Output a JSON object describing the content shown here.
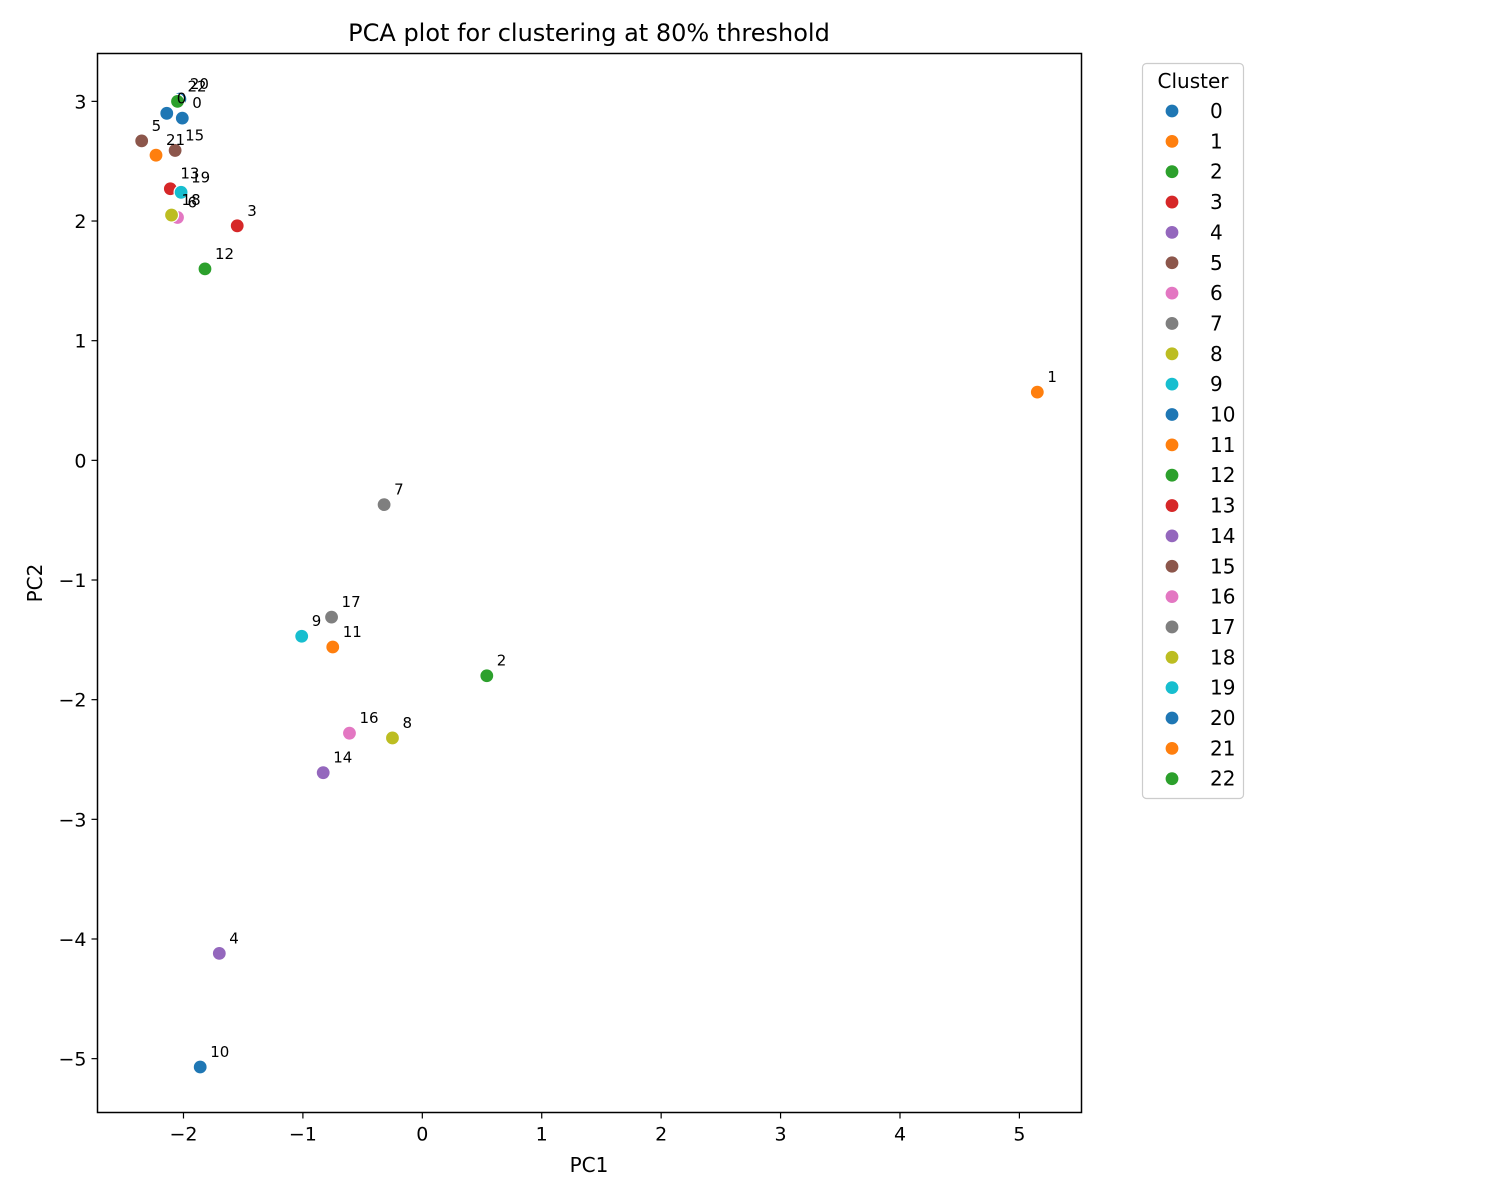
{
  "chart_data": {
    "type": "scatter",
    "title": "PCA plot for clustering at 80% threshold",
    "xlabel": "PC1",
    "ylabel": "PC2",
    "xlim": [
      -2.72,
      5.52
    ],
    "ylim": [
      -5.45,
      3.4
    ],
    "x_ticks": [
      {
        "v": -2,
        "label": "−2"
      },
      {
        "v": -1,
        "label": "−1"
      },
      {
        "v": 0,
        "label": "0"
      },
      {
        "v": 1,
        "label": "1"
      },
      {
        "v": 2,
        "label": "2"
      },
      {
        "v": 3,
        "label": "3"
      },
      {
        "v": 4,
        "label": "4"
      },
      {
        "v": 5,
        "label": "5"
      }
    ],
    "y_ticks": [
      {
        "v": 3,
        "label": "3"
      },
      {
        "v": 2,
        "label": "2"
      },
      {
        "v": 1,
        "label": "1"
      },
      {
        "v": 0,
        "label": "0"
      },
      {
        "v": -1,
        "label": "−1"
      },
      {
        "v": -2,
        "label": "−2"
      },
      {
        "v": -3,
        "label": "−3"
      },
      {
        "v": -4,
        "label": "−4"
      },
      {
        "v": -5,
        "label": "−5"
      }
    ],
    "grid": false,
    "legend": {
      "title": "Cluster",
      "placement": "outside-right-top"
    },
    "series": [
      {
        "name": "0",
        "color": "#1f77b4",
        "points": [
          {
            "x": -2.14,
            "y": 2.9,
            "label": "0"
          }
        ]
      },
      {
        "name": "1",
        "color": "#ff7f0e",
        "points": [
          {
            "x": 5.15,
            "y": 0.57,
            "label": "1"
          }
        ]
      },
      {
        "name": "2",
        "color": "#2ca02c",
        "points": [
          {
            "x": 0.54,
            "y": -1.8,
            "label": "2"
          }
        ]
      },
      {
        "name": "3",
        "color": "#d62728",
        "points": [
          {
            "x": -1.55,
            "y": 1.96,
            "label": "3"
          }
        ]
      },
      {
        "name": "4",
        "color": "#9467bd",
        "points": [
          {
            "x": -1.7,
            "y": -4.12,
            "label": "4"
          }
        ]
      },
      {
        "name": "5",
        "color": "#8c564b",
        "points": [
          {
            "x": -2.35,
            "y": 2.67,
            "label": "5"
          }
        ]
      },
      {
        "name": "6",
        "color": "#e377c2",
        "points": [
          {
            "x": -2.05,
            "y": 2.03,
            "label": "6"
          }
        ]
      },
      {
        "name": "7",
        "color": "#7f7f7f",
        "points": [
          {
            "x": -0.32,
            "y": -0.37,
            "label": "7"
          }
        ]
      },
      {
        "name": "8",
        "color": "#bcbd22",
        "points": [
          {
            "x": -0.25,
            "y": -2.32,
            "label": "8"
          }
        ]
      },
      {
        "name": "9",
        "color": "#17becf",
        "points": [
          {
            "x": -1.01,
            "y": -1.47,
            "label": "9"
          }
        ]
      },
      {
        "name": "10",
        "color": "#1f77b4",
        "points": [
          {
            "x": -1.86,
            "y": -5.07,
            "label": "10"
          }
        ]
      },
      {
        "name": "11",
        "color": "#ff7f0e",
        "points": [
          {
            "x": -0.75,
            "y": -1.56,
            "label": "11"
          }
        ]
      },
      {
        "name": "12",
        "color": "#2ca02c",
        "points": [
          {
            "x": -1.82,
            "y": 1.6,
            "label": "12"
          }
        ]
      },
      {
        "name": "13",
        "color": "#d62728",
        "points": [
          {
            "x": -2.11,
            "y": 2.27,
            "label": "13"
          }
        ]
      },
      {
        "name": "14",
        "color": "#9467bd",
        "points": [
          {
            "x": -0.83,
            "y": -2.61,
            "label": "14"
          }
        ]
      },
      {
        "name": "15",
        "color": "#8c564b",
        "points": [
          {
            "x": -2.07,
            "y": 2.59,
            "label": "15"
          }
        ]
      },
      {
        "name": "16",
        "color": "#e377c2",
        "points": [
          {
            "x": -0.61,
            "y": -2.28,
            "label": "16"
          }
        ]
      },
      {
        "name": "17",
        "color": "#7f7f7f",
        "points": [
          {
            "x": -0.76,
            "y": -1.31,
            "label": "17"
          }
        ]
      },
      {
        "name": "18",
        "color": "#bcbd22",
        "points": [
          {
            "x": -2.1,
            "y": 2.05,
            "label": "18"
          }
        ]
      },
      {
        "name": "19",
        "color": "#17becf",
        "points": [
          {
            "x": -2.02,
            "y": 2.24,
            "label": "19"
          }
        ]
      },
      {
        "name": "20",
        "color": "#1f77b4",
        "points": [
          {
            "x": -2.03,
            "y": 3.02,
            "label": "20"
          },
          {
            "x": -2.01,
            "y": 2.86,
            "label": "0"
          }
        ]
      },
      {
        "name": "21",
        "color": "#ff7f0e",
        "points": [
          {
            "x": -2.23,
            "y": 2.55,
            "label": "21"
          }
        ]
      },
      {
        "name": "22",
        "color": "#2ca02c",
        "points": [
          {
            "x": -2.05,
            "y": 3.0,
            "label": "22"
          }
        ]
      }
    ]
  }
}
